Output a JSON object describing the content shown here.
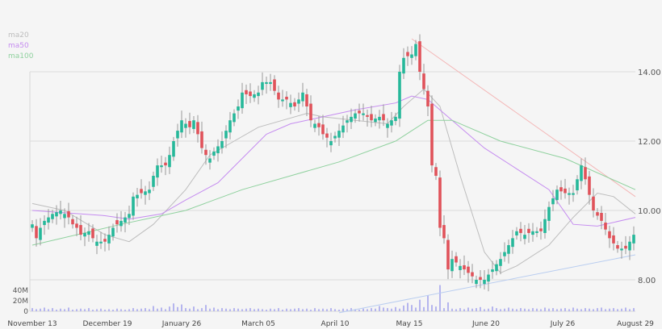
{
  "chart_data": {
    "type": "candlestick",
    "title": "",
    "legend": {
      "placement": "top-left",
      "entries": [
        {
          "name": "ma20",
          "color": "#bdbdbd"
        },
        {
          "name": "ma50",
          "color": "#c58cf0"
        },
        {
          "name": "ma100",
          "color": "#8fd19e"
        }
      ]
    },
    "ylim": [
      7.0,
      15.0
    ],
    "y_ticks": [
      {
        "value": 14,
        "label": "14.00"
      },
      {
        "value": 12,
        "label": "12.00"
      },
      {
        "value": 10,
        "label": "10.00"
      },
      {
        "value": 8,
        "label": "8.00"
      }
    ],
    "volume_ticks": [
      {
        "value": 40,
        "label": "40M"
      },
      {
        "value": 20,
        "label": "20M"
      },
      {
        "value": 0,
        "label": "0"
      }
    ],
    "x_ticks": [
      {
        "index": 0,
        "label": "November 13"
      },
      {
        "index": 18.6,
        "label": "December 19"
      },
      {
        "index": 37,
        "label": "January 26"
      },
      {
        "index": 56,
        "label": "March 05"
      },
      {
        "index": 75,
        "label": "April 10"
      },
      {
        "index": 93.4,
        "label": "May 15"
      },
      {
        "index": 112.4,
        "label": "June 20"
      },
      {
        "index": 131.4,
        "label": "July 26"
      },
      {
        "index": 149.4,
        "label": "August 29"
      }
    ],
    "closes": [
      9.6,
      9.2,
      9.5,
      9.7,
      9.8,
      9.9,
      9.95,
      10.0,
      9.9,
      9.8,
      9.6,
      9.5,
      9.3,
      9.35,
      9.4,
      9.2,
      9.1,
      9.1,
      9.1,
      9.3,
      9.5,
      9.6,
      9.7,
      9.8,
      9.9,
      10.4,
      10.45,
      10.5,
      10.55,
      10.6,
      11.0,
      11.3,
      11.3,
      11.3,
      11.6,
      12.0,
      12.3,
      12.6,
      12.5,
      12.4,
      12.6,
      12.2,
      11.8,
      11.6,
      11.5,
      11.7,
      11.85,
      12.0,
      12.3,
      12.6,
      12.8,
      13.0,
      13.4,
      13.35,
      13.3,
      13.35,
      13.4,
      13.7,
      13.7,
      13.7,
      13.45,
      13.2,
      13.2,
      13.2,
      13.1,
      13.0,
      13.2,
      13.4,
      13.0,
      12.6,
      12.5,
      12.4,
      12.2,
      12.1,
      12.0,
      12.15,
      12.3,
      12.45,
      12.6,
      12.7,
      12.8,
      12.8,
      12.8,
      12.7,
      12.6,
      12.65,
      12.7,
      12.6,
      12.5,
      12.6,
      12.7,
      14.0,
      14.4,
      14.45,
      14.5,
      14.8,
      14.0,
      13.5,
      13.0,
      11.3,
      11.0,
      9.5,
      9.2,
      8.3,
      8.6,
      8.5,
      8.4,
      8.3,
      8.2,
      8.1,
      8.0,
      8.0,
      8.0,
      8.15,
      8.3,
      8.45,
      8.6,
      8.8,
      9.0,
      9.2,
      9.4,
      9.35,
      9.3,
      9.35,
      9.4,
      9.4,
      9.4,
      9.75,
      10.1,
      10.35,
      10.6,
      10.55,
      10.5,
      10.5,
      10.5,
      10.9,
      11.3,
      10.9,
      10.45,
      10.0,
      9.85,
      9.7,
      9.45,
      9.2,
      9.05,
      8.9,
      8.9,
      8.9,
      9.1,
      9.3
    ],
    "volume_millions": [
      6,
      4,
      5,
      7,
      4,
      6,
      3,
      5,
      4,
      7,
      3,
      4,
      5,
      4,
      6,
      3,
      4,
      5,
      3,
      4,
      3,
      5,
      4,
      3,
      4,
      6,
      4,
      5,
      6,
      4,
      10,
      5,
      7,
      4,
      9,
      15,
      8,
      13,
      6,
      5,
      9,
      4,
      6,
      12,
      5,
      7,
      4,
      6,
      5,
      4,
      6,
      5,
      4,
      5,
      6,
      4,
      5,
      4,
      3,
      5,
      4,
      6,
      3,
      5,
      4,
      5,
      6,
      4,
      5,
      3,
      6,
      4,
      5,
      4,
      6,
      4,
      3,
      5,
      4,
      6,
      4,
      3,
      5,
      4,
      6,
      5,
      10,
      7,
      6,
      5,
      8,
      5,
      11,
      16,
      12,
      7,
      22,
      8,
      30,
      12,
      9,
      50,
      6,
      17,
      5,
      4,
      6,
      4,
      7,
      5,
      6,
      8,
      4,
      5,
      9,
      6,
      4,
      5,
      7,
      5,
      4,
      6,
      5,
      4,
      6,
      5,
      4,
      7,
      5,
      6,
      4,
      5,
      6,
      4,
      7,
      5,
      4,
      6,
      5,
      4,
      6,
      7,
      4,
      5,
      6,
      4,
      5,
      7,
      4,
      6
    ],
    "moving_averages": {
      "ma20": [
        [
          0,
          10.2
        ],
        [
          8,
          10.0
        ],
        [
          18,
          9.3
        ],
        [
          24,
          9.1
        ],
        [
          30,
          9.6
        ],
        [
          38,
          10.6
        ],
        [
          44,
          11.6
        ],
        [
          50,
          12.0
        ],
        [
          56,
          12.4
        ],
        [
          62,
          12.6
        ],
        [
          68,
          12.8
        ],
        [
          72,
          12.7
        ],
        [
          80,
          12.6
        ],
        [
          88,
          12.5
        ],
        [
          92,
          13.0
        ],
        [
          97,
          13.5
        ],
        [
          101,
          13.0
        ],
        [
          106,
          11.0
        ],
        [
          112,
          8.8
        ],
        [
          116,
          8.2
        ],
        [
          120,
          8.4
        ],
        [
          128,
          9.0
        ],
        [
          134,
          9.8
        ],
        [
          140,
          10.5
        ],
        [
          144,
          10.4
        ],
        [
          149.4,
          9.9
        ]
      ],
      "ma50": [
        [
          0,
          10.0
        ],
        [
          12,
          9.9
        ],
        [
          18,
          9.85
        ],
        [
          24,
          9.75
        ],
        [
          32,
          9.9
        ],
        [
          38,
          10.3
        ],
        [
          46,
          10.8
        ],
        [
          52,
          11.5
        ],
        [
          58,
          12.2
        ],
        [
          64,
          12.5
        ],
        [
          72,
          12.7
        ],
        [
          80,
          12.9
        ],
        [
          90,
          13.1
        ],
        [
          94,
          13.3
        ],
        [
          98,
          13.2
        ],
        [
          104,
          12.6
        ],
        [
          112,
          11.8
        ],
        [
          120,
          11.2
        ],
        [
          128,
          10.6
        ],
        [
          134,
          9.6
        ],
        [
          140,
          9.55
        ],
        [
          149.4,
          9.8
        ]
      ],
      "ma100": [
        [
          0,
          9.0
        ],
        [
          22,
          9.6
        ],
        [
          38,
          10.0
        ],
        [
          52,
          10.6
        ],
        [
          64,
          11.0
        ],
        [
          76,
          11.4
        ],
        [
          90,
          12.0
        ],
        [
          98,
          12.6
        ],
        [
          104,
          12.6
        ],
        [
          116,
          12.0
        ],
        [
          132,
          11.5
        ],
        [
          149.4,
          10.6
        ]
      ]
    },
    "trend_lines": [
      {
        "name": "resistance",
        "color": "#f4b6b6",
        "from": [
          94,
          14.95
        ],
        "to": [
          149.4,
          10.4
        ]
      },
      {
        "name": "support",
        "color": "#b9cdf0",
        "from": [
          76,
          7.05
        ],
        "to": [
          149.4,
          8.72
        ]
      }
    ],
    "colors": {
      "up": "#26b89a",
      "down": "#e0525a",
      "volume": "#b5b5ee",
      "grid": "#dcdcdc"
    }
  }
}
